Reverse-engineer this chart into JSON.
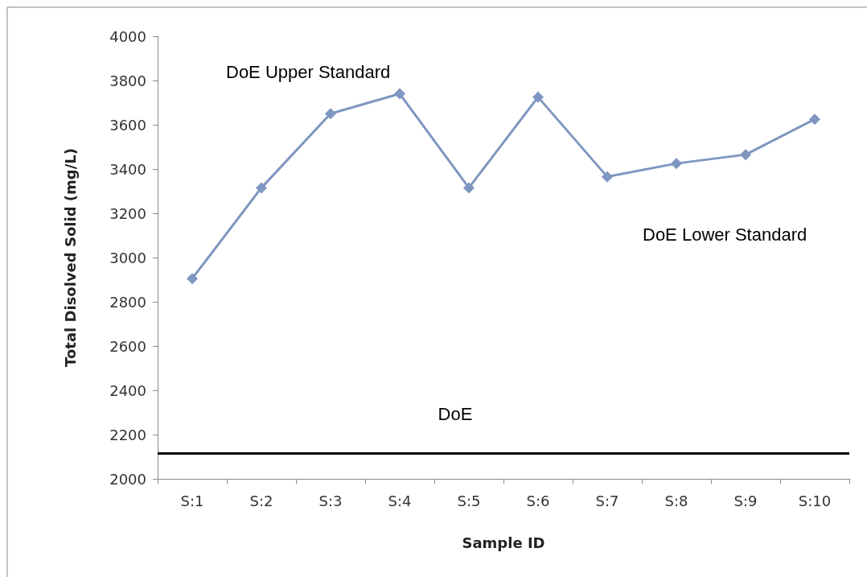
{
  "chart_data": {
    "type": "line",
    "xlabel": "Sample ID",
    "ylabel": "Total Disolved Solid (mg/L)",
    "categories": [
      "S:1",
      "S:2",
      "S:3",
      "S:4",
      "S:5",
      "S:6",
      "S:7",
      "S:8",
      "S:9",
      "S:10"
    ],
    "series": [
      {
        "color": "#7f96c0",
        "values": [
          2905,
          3315,
          3650,
          3740,
          3315,
          3725,
          3365,
          3425,
          3465,
          3625
        ]
      }
    ],
    "ylim": [
      2000,
      4000
    ],
    "yticks": [
      2000,
      2200,
      2400,
      2600,
      2800,
      3000,
      3200,
      3400,
      3600,
      3800,
      4000
    ],
    "grid": false,
    "marker": "diamond",
    "line_style": "solid",
    "ref_lines": [
      {
        "axis": "y",
        "value": 2115,
        "label": "DoE",
        "color": "#000000"
      }
    ],
    "annotations": [
      "DoE Upper Standard",
      "DoE Lower Standard"
    ]
  }
}
